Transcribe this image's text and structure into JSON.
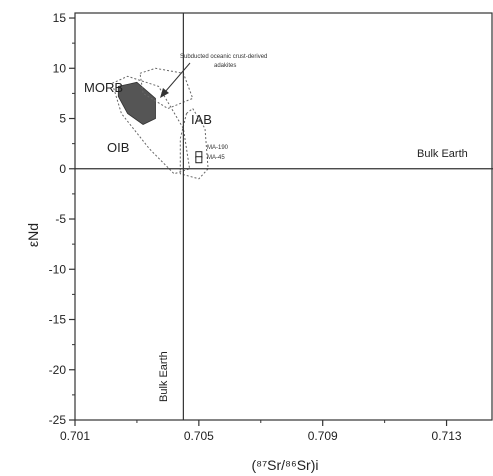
{
  "chart_data": {
    "type": "scatter",
    "title": "",
    "xlabel": "(⁸⁷Sr/⁸⁶Sr)i",
    "ylabel": "εNd",
    "xlim": [
      0.701,
      0.7145
    ],
    "ylim": [
      -25,
      15.5
    ],
    "x_ticks": [
      0.701,
      0.705,
      0.709,
      0.713
    ],
    "x_tick_labels": [
      "0.701",
      "0.705",
      "0.709",
      "0.713"
    ],
    "y_ticks": [
      15,
      10,
      5,
      0,
      -5,
      -10,
      -15,
      -20,
      -25
    ],
    "y_tick_labels": [
      "15",
      "10",
      "5",
      "0",
      "-5",
      "-10",
      "-15",
      "-20",
      "-25"
    ],
    "grid": false,
    "reference_lines": [
      {
        "orientation": "horizontal",
        "value": 0,
        "label": "Bulk Earth"
      },
      {
        "orientation": "vertical",
        "value": 0.7045,
        "label": "Bulk Earth"
      }
    ],
    "fields": [
      {
        "name": "MORB",
        "fill": "#555555",
        "outline": [
          [
            0.7024,
            8.2
          ],
          [
            0.703,
            8.6
          ],
          [
            0.7036,
            7.0
          ],
          [
            0.7036,
            5.0
          ],
          [
            0.7032,
            4.4
          ],
          [
            0.7027,
            5.5
          ],
          [
            0.7024,
            7.2
          ]
        ]
      },
      {
        "name": "OIB",
        "fill": "none",
        "outline": [
          [
            0.7022,
            8.5
          ],
          [
            0.7027,
            9.2
          ],
          [
            0.7037,
            8.2
          ],
          [
            0.7045,
            4.0
          ],
          [
            0.7047,
            0.0
          ],
          [
            0.7042,
            -0.5
          ],
          [
            0.7034,
            2.0
          ],
          [
            0.7025,
            5.5
          ]
        ]
      },
      {
        "name": "Subducted oceanic crust-derived adakites",
        "fill": "none",
        "outline": [
          [
            0.7031,
            9.5
          ],
          [
            0.7036,
            10.0
          ],
          [
            0.7045,
            9.5
          ],
          [
            0.7048,
            7.0
          ],
          [
            0.704,
            6.0
          ],
          [
            0.7032,
            7.5
          ]
        ]
      },
      {
        "name": "IAB",
        "fill": "none",
        "outline": [
          [
            0.7046,
            5.5
          ],
          [
            0.7048,
            6.0
          ],
          [
            0.7052,
            4.0
          ],
          [
            0.7053,
            0.0
          ],
          [
            0.705,
            -1.0
          ],
          [
            0.7044,
            -0.5
          ],
          [
            0.7044,
            3.0
          ]
        ]
      }
    ],
    "samples": [
      {
        "name": "MA-190",
        "x": 0.705,
        "y": 1.4,
        "marker": "square-open"
      },
      {
        "name": "MA-45",
        "x": 0.705,
        "y": 0.9,
        "marker": "square-open"
      }
    ],
    "annotations": {
      "morb_label": "MORB",
      "oib_label": "OIB",
      "iab_label": "IAB",
      "adakite_line1": "Subducted oceanic crust-derived",
      "adakite_line2": "adakites",
      "sample1_label": "MA-190",
      "sample2_label": "MA-45",
      "bulk_earth_h": "Bulk Earth",
      "bulk_earth_v": "Bulk Earth"
    }
  },
  "colors": {
    "axis": "#333333",
    "morb_fill": "#555555",
    "outline": "#666666"
  }
}
